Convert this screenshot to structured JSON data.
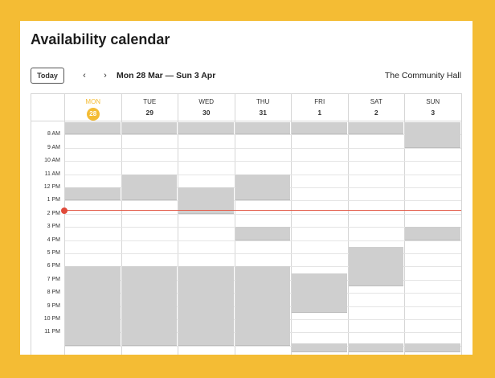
{
  "title": "Availability calendar",
  "toolbar": {
    "today_label": "Today",
    "prev_icon": "‹",
    "next_icon": "›",
    "date_range": "Mon 28 Mar — Sun 3 Apr",
    "venue": "The Community Hall"
  },
  "days": [
    {
      "name": "MON",
      "num": "28",
      "today": true
    },
    {
      "name": "TUE",
      "num": "29"
    },
    {
      "name": "WED",
      "num": "30"
    },
    {
      "name": "THU",
      "num": "31"
    },
    {
      "name": "FRI",
      "num": "1"
    },
    {
      "name": "SAT",
      "num": "2"
    },
    {
      "name": "SUN",
      "num": "3"
    }
  ],
  "times": [
    "8 AM",
    "9 AM",
    "10 AM",
    "11 AM",
    "12 PM",
    "1 PM",
    "2 PM",
    "3 PM",
    "4 PM",
    "5 PM",
    "6 PM",
    "7 PM",
    "8 PM",
    "9 PM",
    "10 PM",
    "11 PM"
  ],
  "current_time_hour": 13.7,
  "booked": [
    {
      "day": 0,
      "start": 7.0,
      "end": 8.0
    },
    {
      "day": 1,
      "start": 7.0,
      "end": 8.0
    },
    {
      "day": 2,
      "start": 7.0,
      "end": 8.0
    },
    {
      "day": 3,
      "start": 7.0,
      "end": 8.0
    },
    {
      "day": 4,
      "start": 7.0,
      "end": 8.0
    },
    {
      "day": 5,
      "start": 7.0,
      "end": 8.0
    },
    {
      "day": 6,
      "start": 7.0,
      "end": 9.0
    },
    {
      "day": 0,
      "start": 12.0,
      "end": 13.0
    },
    {
      "day": 1,
      "start": 11.0,
      "end": 13.0
    },
    {
      "day": 2,
      "start": 12.0,
      "end": 14.0
    },
    {
      "day": 3,
      "start": 11.0,
      "end": 13.0
    },
    {
      "day": 3,
      "start": 15.0,
      "end": 16.0
    },
    {
      "day": 6,
      "start": 15.0,
      "end": 16.0
    },
    {
      "day": 5,
      "start": 16.5,
      "end": 19.5
    },
    {
      "day": 0,
      "start": 18.0,
      "end": 24.0
    },
    {
      "day": 1,
      "start": 18.0,
      "end": 24.0
    },
    {
      "day": 2,
      "start": 18.0,
      "end": 24.0
    },
    {
      "day": 3,
      "start": 18.0,
      "end": 24.0
    },
    {
      "day": 4,
      "start": 18.5,
      "end": 21.5
    },
    {
      "day": 4,
      "start": 23.8,
      "end": 24.5
    },
    {
      "day": 5,
      "start": 23.8,
      "end": 24.5
    },
    {
      "day": 6,
      "start": 23.8,
      "end": 24.5
    }
  ],
  "colors": {
    "accent": "#f4bc34",
    "booked": "#cfcfcf",
    "now": "#e04a3a"
  }
}
